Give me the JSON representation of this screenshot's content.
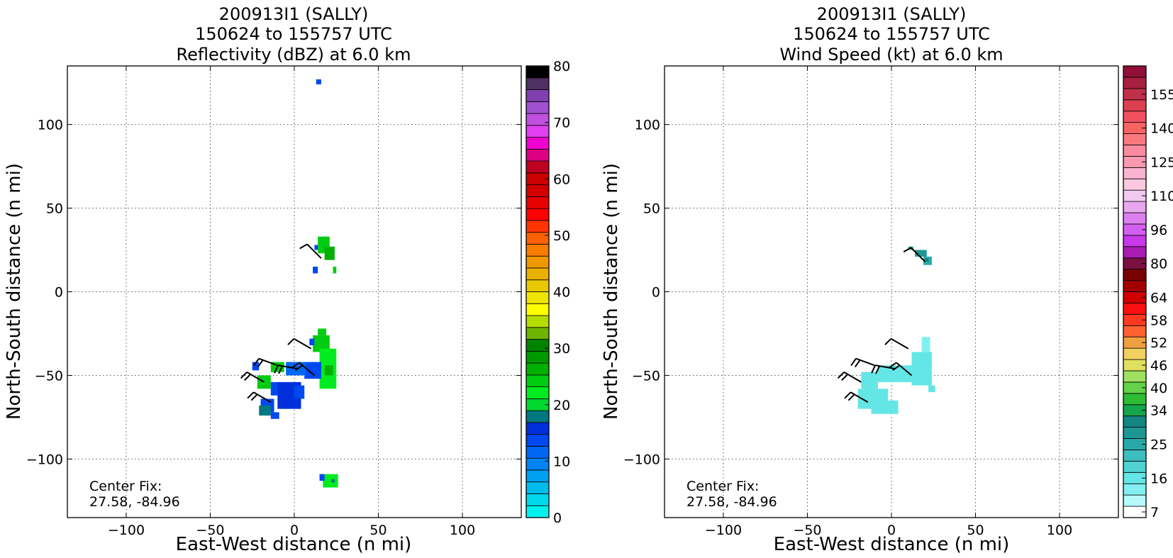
{
  "figure": {
    "xlabel": "East-West distance (n mi)",
    "ylabel": "North-South distance (n mi)",
    "center_fix_label": "Center Fix:",
    "center_fix_value": "27.58, -84.96"
  },
  "chart_data": [
    {
      "type": "heatmap",
      "title_line1": "200913I1 (SALLY)",
      "title_line2": "150624 to 155757 UTC",
      "title_line3": "Reflectivity (dBZ) at 6.0 km",
      "xlabel": "East-West distance (n mi)",
      "ylabel": "North-South distance (n mi)",
      "xlim": [
        -135,
        135
      ],
      "ylim": [
        -135,
        135
      ],
      "xticks": [
        -100,
        -50,
        0,
        50,
        100
      ],
      "yticks": [
        -100,
        -50,
        0,
        50,
        100
      ],
      "xtick_labels": [
        "−100",
        "−50",
        "0",
        "50",
        "100"
      ],
      "ytick_labels": [
        "−100",
        "−50",
        "0",
        "50",
        "100"
      ],
      "grid": true,
      "annotation": [
        "Center Fix:",
        "27.58, -84.96"
      ],
      "colorbar": {
        "min": 0,
        "max": 80,
        "step": 2.5,
        "tick_values": [
          0,
          10,
          20,
          30,
          40,
          50,
          60,
          70,
          80
        ],
        "tick_labels": [
          "0",
          "10",
          "20",
          "30",
          "40",
          "50",
          "60",
          "70",
          "80"
        ],
        "colors": [
          "#00f0f0",
          "#00d8ec",
          "#00bcec",
          "#00a0f0",
          "#0084f4",
          "#0066f4",
          "#0048f0",
          "#0030dc",
          "#007880",
          "#00d830",
          "#00ec20",
          "#00cc10",
          "#00b000",
          "#009800",
          "#008400",
          "#6cb400",
          "#b4dc00",
          "#ffff00",
          "#f0e400",
          "#e8c800",
          "#eab000",
          "#f09800",
          "#f87c00",
          "#ff6000",
          "#ff3400",
          "#ff0000",
          "#e80000",
          "#d40000",
          "#cc0000",
          "#c00020",
          "#dc0080",
          "#f000d0",
          "#e040f0",
          "#c050e0",
          "#a050d0",
          "#8040b0",
          "#503060",
          "#000000"
        ]
      },
      "echo_regions": [
        {
          "x": 13,
          "y": 124,
          "w": 3,
          "h": 3,
          "color": "#0048f0"
        },
        {
          "x": 12,
          "y": 25,
          "w": 3,
          "h": 3,
          "color": "#0048f0"
        },
        {
          "x": 14,
          "y": 23,
          "w": 7,
          "h": 10,
          "color": "#00cc10"
        },
        {
          "x": 18,
          "y": 19,
          "w": 6,
          "h": 8,
          "color": "#00b000"
        },
        {
          "x": 11,
          "y": 11,
          "w": 3,
          "h": 4,
          "color": "#0048f0"
        },
        {
          "x": 23,
          "y": 11,
          "w": 2,
          "h": 4,
          "color": "#00cc10"
        },
        {
          "x": 11,
          "y": -36,
          "w": 10,
          "h": 10,
          "color": "#00cc10"
        },
        {
          "x": 14,
          "y": -26,
          "w": 5,
          "h": 4,
          "color": "#00cc10"
        },
        {
          "x": 9,
          "y": -32,
          "w": 3,
          "h": 4,
          "color": "#0048f0"
        },
        {
          "x": 15,
          "y": -58,
          "w": 10,
          "h": 24,
          "color": "#00ec20"
        },
        {
          "x": 18,
          "y": -50,
          "w": 5,
          "h": 6,
          "color": "#00b000"
        },
        {
          "x": 6,
          "y": -52,
          "w": 10,
          "h": 10,
          "color": "#0048f0"
        },
        {
          "x": -5,
          "y": -50,
          "w": 12,
          "h": 8,
          "color": "#0066f4"
        },
        {
          "x": -14,
          "y": -48,
          "w": 8,
          "h": 6,
          "color": "#00cc10"
        },
        {
          "x": -25,
          "y": -47,
          "w": 4,
          "h": 5,
          "color": "#0048f0"
        },
        {
          "x": -22,
          "y": -58,
          "w": 8,
          "h": 8,
          "color": "#00cc10"
        },
        {
          "x": -14,
          "y": -62,
          "w": 6,
          "h": 8,
          "color": "#0048f0"
        },
        {
          "x": -10,
          "y": -70,
          "w": 14,
          "h": 16,
          "color": "#0030dc"
        },
        {
          "x": 0,
          "y": -64,
          "w": 6,
          "h": 8,
          "color": "#0048f0"
        },
        {
          "x": -20,
          "y": -72,
          "w": 8,
          "h": 8,
          "color": "#0048f0"
        },
        {
          "x": -21,
          "y": -74,
          "w": 7,
          "h": 6,
          "color": "#007880"
        },
        {
          "x": -14,
          "y": -76,
          "w": 5,
          "h": 4,
          "color": "#0048f0"
        },
        {
          "x": 17,
          "y": -117,
          "w": 9,
          "h": 8,
          "color": "#00ec20"
        },
        {
          "x": 15,
          "y": -113,
          "w": 3,
          "h": 4,
          "color": "#0048f0"
        },
        {
          "x": 22,
          "y": -114,
          "w": 2,
          "h": 2,
          "color": "#007880"
        }
      ],
      "wind_barbs": [
        {
          "x": 16,
          "y": 20,
          "dir": 315,
          "flags": 1
        },
        {
          "x": 10,
          "y": -34,
          "dir": 300,
          "flags": 1
        },
        {
          "x": -10,
          "y": -44,
          "dir": 290,
          "flags": 2
        },
        {
          "x": 2,
          "y": -46,
          "dir": 280,
          "flags": 2
        },
        {
          "x": 12,
          "y": -50,
          "dir": 310,
          "flags": 2
        },
        {
          "x": -18,
          "y": -54,
          "dir": 300,
          "flags": 2
        },
        {
          "x": -14,
          "y": -66,
          "dir": 300,
          "flags": 2
        }
      ]
    },
    {
      "type": "heatmap",
      "title_line1": "200913I1 (SALLY)",
      "title_line2": "150624 to 155757 UTC",
      "title_line3": "Wind Speed (kt) at 6.0 km",
      "xlabel": "East-West distance (n mi)",
      "ylabel": "North-South distance (n mi)",
      "xlim": [
        -135,
        135
      ],
      "ylim": [
        -135,
        135
      ],
      "xticks": [
        -100,
        -50,
        0,
        50,
        100
      ],
      "yticks": [
        -100,
        -50,
        0,
        50,
        100
      ],
      "xtick_labels": [
        "−100",
        "−50",
        "0",
        "50",
        "100"
      ],
      "ytick_labels": [
        "−100",
        "−50",
        "0",
        "50",
        "100"
      ],
      "grid": true,
      "annotation": [
        "Center Fix:",
        "27.58, -84.96"
      ],
      "colorbar": {
        "tick_labels": [
          "7",
          "16",
          "25",
          "34",
          "40",
          "46",
          "52",
          "58",
          "64",
          "80",
          "96",
          "110",
          "125",
          "140",
          "155"
        ],
        "tick_bins": [
          0,
          3,
          6,
          9,
          11,
          13,
          15,
          17,
          19,
          22,
          25,
          28,
          31,
          34,
          37
        ],
        "colors": [
          "#ffffff",
          "#b4fafa",
          "#82f0f0",
          "#64e6e6",
          "#50d2d2",
          "#3cbebe",
          "#28a8a8",
          "#1e9696",
          "#148484",
          "#16a44c",
          "#2ebc34",
          "#64d24a",
          "#a0e060",
          "#e0e060",
          "#f0d060",
          "#f0a040",
          "#ff6030",
          "#ff3820",
          "#f81010",
          "#d00000",
          "#a00000",
          "#780000",
          "#781040",
          "#a81cb4",
          "#c838e8",
          "#d460f0",
          "#dc80f0",
          "#e8a8f0",
          "#f0c8f0",
          "#fac8e0",
          "#fab4d0",
          "#fa98b0",
          "#fa8aa0",
          "#fa7a80",
          "#f86464",
          "#f05060",
          "#dc4050",
          "#c03048",
          "#a82040",
          "#901038"
        ]
      },
      "echo_regions": [
        {
          "x": 10,
          "y": 25,
          "w": 3,
          "h": 2,
          "color": "#28a8a8"
        },
        {
          "x": 14,
          "y": 21,
          "w": 7,
          "h": 4,
          "color": "#1e9696"
        },
        {
          "x": 19,
          "y": 16,
          "w": 5,
          "h": 5,
          "color": "#28a8a8"
        },
        {
          "x": 20,
          "y": 18,
          "w": 2,
          "h": 2,
          "color": "#148484"
        },
        {
          "x": 18,
          "y": -36,
          "w": 5,
          "h": 9,
          "color": "#82f0f0"
        },
        {
          "x": 12,
          "y": -56,
          "w": 12,
          "h": 20,
          "color": "#64e6e6"
        },
        {
          "x": -8,
          "y": -54,
          "w": 20,
          "h": 10,
          "color": "#64e6e6"
        },
        {
          "x": -18,
          "y": -58,
          "w": 10,
          "h": 10,
          "color": "#64e6e6"
        },
        {
          "x": -20,
          "y": -70,
          "w": 18,
          "h": 12,
          "color": "#64e6e6"
        },
        {
          "x": -12,
          "y": -73,
          "w": 16,
          "h": 8,
          "color": "#64e6e6"
        },
        {
          "x": 22,
          "y": -60,
          "w": 4,
          "h": 4,
          "color": "#64e6e6"
        }
      ],
      "wind_barbs": [
        {
          "x": 20,
          "y": 18,
          "dir": 315,
          "flags": 1
        },
        {
          "x": 10,
          "y": -34,
          "dir": 300,
          "flags": 1
        },
        {
          "x": -10,
          "y": -44,
          "dir": 290,
          "flags": 2
        },
        {
          "x": 2,
          "y": -46,
          "dir": 280,
          "flags": 2
        },
        {
          "x": 12,
          "y": -50,
          "dir": 310,
          "flags": 2
        },
        {
          "x": -18,
          "y": -54,
          "dir": 300,
          "flags": 2
        },
        {
          "x": -14,
          "y": -66,
          "dir": 300,
          "flags": 2
        }
      ]
    }
  ]
}
